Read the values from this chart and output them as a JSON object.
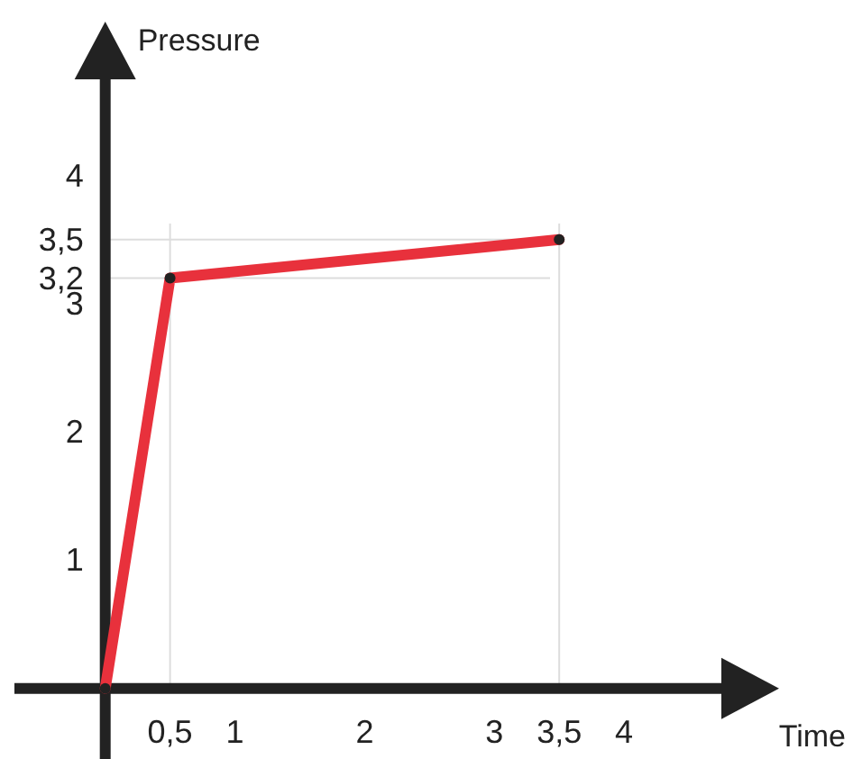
{
  "chart_data": {
    "type": "line",
    "xlabel": "Time",
    "ylabel": "Pressure",
    "x": [
      0,
      0.5,
      3.5
    ],
    "series": [
      {
        "color": "#e8313c",
        "values": [
          0,
          3.2,
          3.5
        ]
      }
    ],
    "xlim": [
      -0.7,
      4.75
    ],
    "ylim": [
      -0.55,
      4.75
    ],
    "xticks": [
      {
        "value": 0.5,
        "label": "0,5"
      },
      1,
      2,
      3,
      {
        "value": 3.5,
        "label": "3,5"
      },
      4
    ],
    "yticks": [
      1,
      2,
      {
        "value": 3.2,
        "label": "3,2"
      },
      3,
      {
        "value": 3.5,
        "label": "3,5"
      },
      4
    ],
    "ref_lines": [
      {
        "axis": "x",
        "value": 0.5,
        "color": "#dddddd"
      },
      {
        "axis": "x",
        "value": 3.5,
        "color": "#dddddd"
      },
      {
        "axis": "y",
        "value": 3.2,
        "color": "#dddddd"
      },
      {
        "axis": "y",
        "value": 3.5,
        "color": "#dddddd"
      }
    ],
    "marker": "circle",
    "line_style": "solid",
    "grid": false
  }
}
